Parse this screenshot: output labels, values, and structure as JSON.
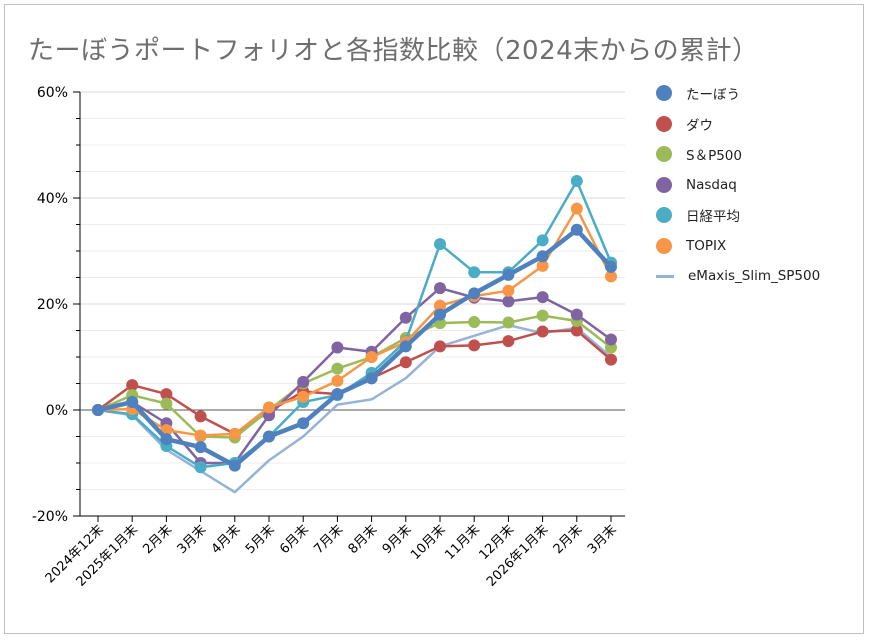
{
  "chart_data": {
    "type": "line",
    "title": "たーぼうポートフォリオと各指数比較（2024末からの累計）",
    "xlabel": "",
    "ylabel": "",
    "ylim": [
      -20,
      60
    ],
    "yticks": [
      -20,
      0,
      20,
      40,
      60
    ],
    "ytick_labels": [
      "-20%",
      "0%",
      "20%",
      "40%",
      "60%"
    ],
    "grid": true,
    "legend_position": "right",
    "categories": [
      "2024年12末",
      "2025年1月末",
      "2月末",
      "3月末",
      "4月末",
      "5月末",
      "6月末",
      "7月末",
      "8月末",
      "9月末",
      "10月末",
      "11月末",
      "12月末",
      "2026年1月末",
      "2月末",
      "3月末"
    ],
    "series": [
      {
        "name": "たーぼう",
        "color": "#4e81bd",
        "style": "thick-marker",
        "values": [
          0,
          1.5,
          -5.5,
          -7,
          -10.5,
          -5,
          -2.5,
          3,
          6,
          12,
          18,
          22,
          25.5,
          29,
          34,
          27
        ]
      },
      {
        "name": "ダウ",
        "color": "#c0504d",
        "style": "marker",
        "values": [
          0,
          4.7,
          3,
          -1.2,
          -4.5,
          -0.3,
          3.5,
          3,
          6,
          9,
          12,
          12.2,
          13,
          14.8,
          15,
          9.5
        ]
      },
      {
        "name": "S＆P500",
        "color": "#9bbb59",
        "style": "marker",
        "values": [
          0,
          2.8,
          1.2,
          -5,
          -5.2,
          0,
          5,
          7.8,
          10,
          13.6,
          16.4,
          16.6,
          16.5,
          17.8,
          16.8,
          11.8
        ]
      },
      {
        "name": "Nasdaq",
        "color": "#8064a2",
        "style": "marker",
        "values": [
          0,
          1.5,
          -2.5,
          -10,
          -10,
          -1,
          5.3,
          11.8,
          11,
          17.4,
          23,
          21.2,
          20.5,
          21.3,
          18,
          13.3
        ]
      },
      {
        "name": "日経平均",
        "color": "#4bacc6",
        "style": "marker",
        "values": [
          0,
          -0.8,
          -6.8,
          -10.8,
          -10,
          -5,
          1.5,
          2.8,
          7,
          13,
          31.3,
          26,
          26,
          32,
          43.2,
          27.8
        ]
      },
      {
        "name": "TOPIX",
        "color": "#f79646",
        "style": "marker",
        "values": [
          0,
          0.2,
          -3.8,
          -4.8,
          -4.5,
          0.5,
          2.5,
          5.5,
          10,
          12.8,
          19.7,
          21.5,
          22.5,
          27.2,
          38,
          25.2
        ]
      },
      {
        "name": "eMaxis_Slim_SP500",
        "color": "#95b3d7",
        "style": "line",
        "values": [
          0,
          -1,
          -7.5,
          -11.5,
          -15.5,
          -9.5,
          -5,
          1,
          2,
          6,
          12,
          14,
          16,
          14.5,
          15.5,
          10
        ]
      }
    ]
  }
}
